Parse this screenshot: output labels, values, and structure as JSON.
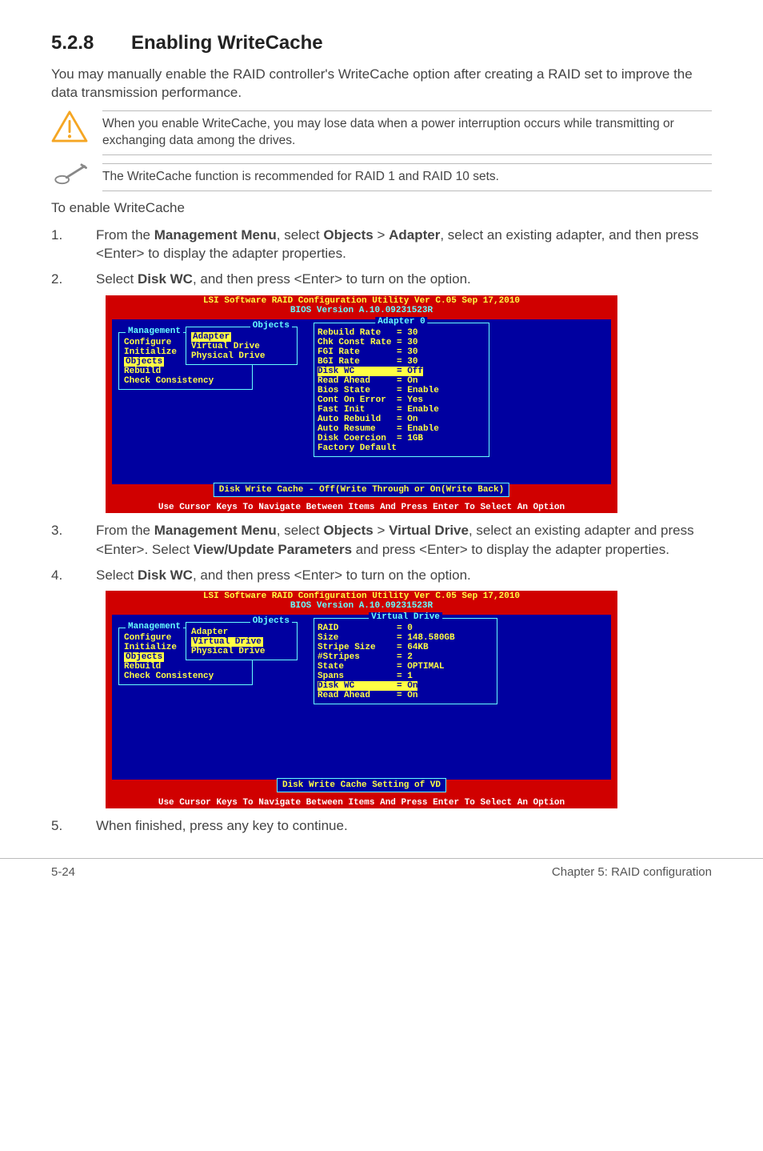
{
  "heading": {
    "number": "5.2.8",
    "title": "Enabling WriteCache"
  },
  "intro": "You may manually enable the RAID controller's WriteCache option after creating a RAID set to improve the data transmission performance.",
  "callouts": {
    "warn": "When you enable WriteCache, you may lose data when a power interruption occurs while transmitting or exchanging data among the drives.",
    "note": "The WriteCache function is recommended for RAID 1 and RAID 10 sets."
  },
  "lead": "To enable WriteCache",
  "steps": {
    "s1_a": "From the ",
    "s1_b": "Management Menu",
    "s1_c": ", select ",
    "s1_d": "Objects",
    "s1_e": " > ",
    "s1_f": "Adapter",
    "s1_g": ", select an existing adapter, and then press <Enter> to display the adapter properties.",
    "s2_a": "Select ",
    "s2_b": "Disk WC",
    "s2_c": ", and then press <Enter> to turn on the option.",
    "s3_a": "From the ",
    "s3_b": "Management Menu",
    "s3_c": ", select ",
    "s3_d": "Objects",
    "s3_e": " > ",
    "s3_f": "Virtual Drive",
    "s3_g": ", select an existing adapter and press <Enter>. Select ",
    "s3_h": "View/Update Parameters",
    "s3_i": " and press <Enter> to display the adapter properties.",
    "s4_a": "Select ",
    "s4_b": "Disk WC",
    "s4_c": ", and then press <Enter> to turn on the option.",
    "s5": "When finished, press any key to continue."
  },
  "bios": {
    "title": "LSI Software RAID Configuration Utility Ver C.05 Sep 17,2010",
    "subtitle": "BIOS Version  A.10.09231523R",
    "footer": "Use Cursor Keys To Navigate Between Items And Press Enter To Select An Option",
    "mgmtLabel": "Management",
    "mgmt": [
      "Configure",
      "Initialize",
      "Objects",
      "Rebuild",
      "Check Consistency"
    ],
    "mgmtHighlight": "Objects",
    "objLabel": "Objects",
    "obj": [
      "Adapter",
      "Virtual Drive",
      "Physical Drive"
    ],
    "shot1": {
      "rightLabel": "Adapter 0",
      "rows": [
        "Rebuild Rate   = 30",
        "Chk Const Rate = 30",
        "FGI Rate       = 30",
        "BGI Rate       = 30",
        "Disk WC        = Off",
        "Read Ahead     = On",
        "Bios State     = Enable",
        "Cont On Error  = Yes",
        "Fast Init      = Enable",
        "Auto Rebuild   = On",
        "Auto Resume    = Enable",
        "Disk Coercion  = 1GB",
        "Factory Default"
      ],
      "hiRow": "Disk WC        = Off",
      "objHighlight": "Adapter",
      "status": "Disk Write Cache - Off(Write Through or On(Write Back)"
    },
    "shot2": {
      "rightLabel": "Virtual Drive",
      "rows": [
        "RAID           = 0",
        "Size           = 148.580GB",
        "Stripe Size    = 64KB",
        "#Stripes       = 2",
        "State          = OPTIMAL",
        "Spans          = 1",
        "Disk WC        = On",
        "Read Ahead     = On"
      ],
      "hiRow": "Disk WC        = On",
      "objHighlight": "Virtual Drive",
      "status": "Disk Write Cache Setting of VD"
    }
  },
  "pagefoot": {
    "left": "5-24",
    "right": "Chapter 5: RAID configuration"
  }
}
